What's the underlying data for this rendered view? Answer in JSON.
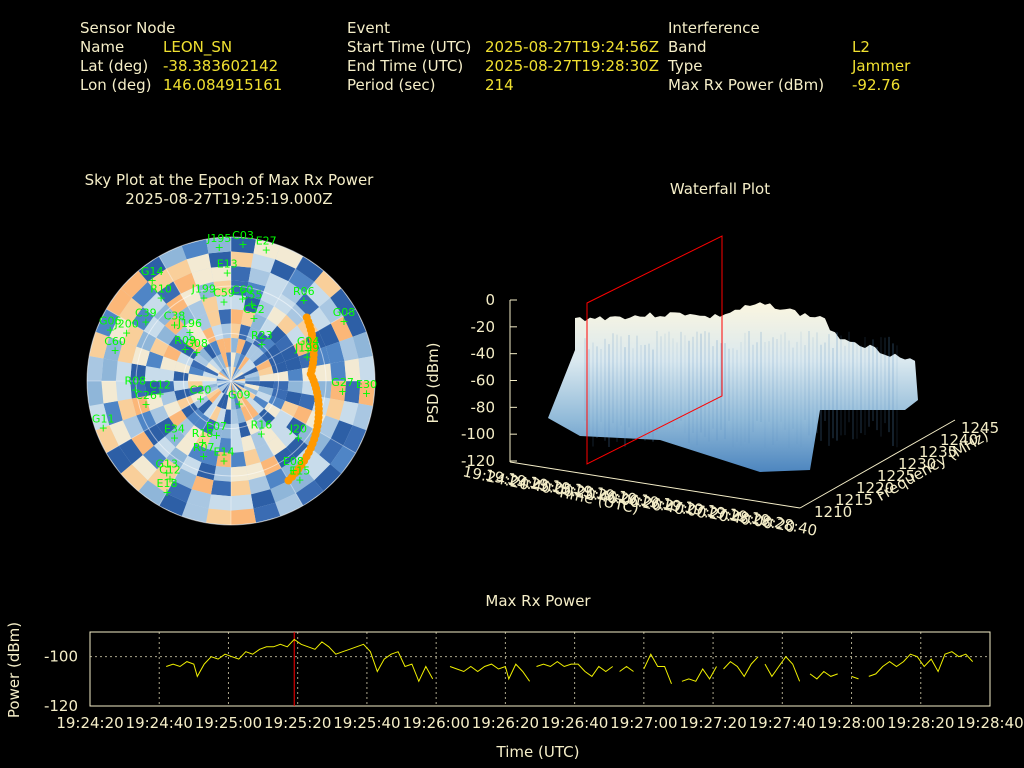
{
  "header": {
    "sensor": {
      "heading": "Sensor Node",
      "rows": [
        {
          "label": "Name",
          "value": "LEON_SN"
        },
        {
          "label": "Lat (deg)",
          "value": "-38.383602142"
        },
        {
          "label": "Lon (deg)",
          "value": "146.084915161"
        }
      ]
    },
    "event": {
      "heading": "Event",
      "rows": [
        {
          "label": "Start Time (UTC)",
          "value": "2025-08-27T19:24:56Z"
        },
        {
          "label": "End Time (UTC)",
          "value": "2025-08-27T19:28:30Z"
        },
        {
          "label": "Period (sec)",
          "value": "214"
        }
      ]
    },
    "interference": {
      "heading": "Interference",
      "rows": [
        {
          "label": "Band",
          "value": "L2"
        },
        {
          "label": "Type",
          "value": "Jammer"
        },
        {
          "label": "Max Rx Power (dBm)",
          "value": "-92.76"
        }
      ]
    }
  },
  "sky_plot": {
    "title_line1": "Sky Plot at the Epoch of Max Rx Power",
    "title_line2": "2025-08-27T19:25:19.000Z",
    "satellites": [
      {
        "prn": "G14",
        "az": -38,
        "el": 10
      },
      {
        "prn": "J195",
        "az": -5,
        "el": 6
      },
      {
        "prn": "C03",
        "az": 5,
        "el": 4
      },
      {
        "prn": "E27",
        "az": 15,
        "el": 5
      },
      {
        "prn": "E13",
        "az": -2,
        "el": 22
      },
      {
        "prn": "R10",
        "az": -40,
        "el": 22
      },
      {
        "prn": "J199",
        "az": -18,
        "el": 35
      },
      {
        "prn": "C59",
        "az": -5,
        "el": 40
      },
      {
        "prn": "C60",
        "az": 8,
        "el": 38
      },
      {
        "prn": "C55",
        "az": 15,
        "el": 40
      },
      {
        "prn": "R06",
        "az": 42,
        "el": 22
      },
      {
        "prn": "G08",
        "az": 62,
        "el": 10
      },
      {
        "prn": "C52",
        "az": 20,
        "el": 48
      },
      {
        "prn": "G06",
        "az": -67,
        "el": 8
      },
      {
        "prn": "J200",
        "az": -65,
        "el": 18
      },
      {
        "prn": "C39",
        "az": -55,
        "el": 25
      },
      {
        "prn": "C38",
        "az": -45,
        "el": 40
      },
      {
        "prn": "R09",
        "az": -55,
        "el": 55
      },
      {
        "prn": "J196",
        "az": -40,
        "el": 50
      },
      {
        "prn": "C60",
        "az": -75,
        "el": 15
      },
      {
        "prn": "G08",
        "az": -50,
        "el": 62
      },
      {
        "prn": "R23",
        "az": 40,
        "el": 60
      },
      {
        "prn": "G04",
        "az": 68,
        "el": 38
      },
      {
        "prn": "J199",
        "az": 72,
        "el": 40
      },
      {
        "prn": "R08",
        "az": -95,
        "el": 30
      },
      {
        "prn": "C26",
        "az": -105,
        "el": 35
      },
      {
        "prn": "C12",
        "az": -100,
        "el": 45
      },
      {
        "prn": "C20",
        "az": -120,
        "el": 68
      },
      {
        "prn": "G09",
        "az": 160,
        "el": 75
      },
      {
        "prn": "G27",
        "az": 95,
        "el": 20
      },
      {
        "prn": "E30",
        "az": 95,
        "el": 5
      },
      {
        "prn": "G11",
        "az": -110,
        "el": 5
      },
      {
        "prn": "E34",
        "az": -135,
        "el": 40
      },
      {
        "prn": "R18",
        "az": -155,
        "el": 48
      },
      {
        "prn": "E07",
        "az": -165,
        "el": 55
      },
      {
        "prn": "R16",
        "az": 150,
        "el": 52
      },
      {
        "prn": "R07",
        "az": -160,
        "el": 40
      },
      {
        "prn": "J20",
        "az": 130,
        "el": 35
      },
      {
        "prn": "E14",
        "az": -175,
        "el": 40
      },
      {
        "prn": "G13",
        "az": -145,
        "el": 20
      },
      {
        "prn": "C12",
        "az": -148,
        "el": 18
      },
      {
        "prn": "E18",
        "az": -150,
        "el": 10
      },
      {
        "prn": "E08",
        "az": 145,
        "el": 22
      },
      {
        "prn": "E15",
        "az": 145,
        "el": 15
      }
    ],
    "jammer_track_color": "#ff9900",
    "label_color": "#00ff00"
  },
  "waterfall": {
    "title": "Waterfall Plot",
    "zlabel": "PSD (dBm)",
    "xlabel": "Time (UTC)",
    "ylabel": "Frequency (MHz)",
    "z_ticks": [
      "0",
      "-20",
      "-40",
      "-60",
      "-80",
      "-100",
      "-120"
    ],
    "freq_ticks": [
      "1210",
      "1215",
      "1220",
      "1225",
      "1230",
      "1235",
      "1240",
      "1245"
    ],
    "time_ticks": [
      "19:24:20",
      "19:24:40",
      "19:25:00",
      "19:25:20",
      "19:25:40",
      "19:26:00",
      "19:26:20",
      "19:26:40",
      "19:27:00",
      "19:27:20",
      "19:27:40",
      "19:28:00",
      "19:28:20",
      "19:28:40"
    ]
  },
  "chart_data": {
    "type": "line",
    "title": "Max Rx Power",
    "xlabel": "Time (UTC)",
    "ylabel": "Power (dBm)",
    "x_ticks": [
      "19:24:20",
      "19:24:40",
      "19:25:00",
      "19:25:20",
      "19:25:40",
      "19:26:00",
      "19:26:20",
      "19:26:40",
      "19:27:00",
      "19:27:20",
      "19:27:40",
      "19:28:00",
      "19:28:20",
      "19:28:40"
    ],
    "y_ticks": [
      "-100",
      "-120"
    ],
    "xlim_sec": [
      0,
      260
    ],
    "ylim": [
      -120,
      -90
    ],
    "marker_sec": 59,
    "marker_color": "#ff0000",
    "line_color": "#f0f000",
    "grid": true,
    "series": [
      {
        "values": [
          [
            22,
            -104
          ],
          [
            24,
            -103
          ],
          [
            26,
            -104
          ],
          [
            28,
            -102
          ],
          [
            30,
            -103
          ],
          [
            31,
            -108
          ],
          [
            33,
            -103
          ],
          [
            35,
            -100
          ],
          [
            37,
            -101
          ],
          [
            39,
            -99
          ],
          [
            41,
            -100
          ],
          [
            43,
            -101
          ],
          [
            45,
            -98
          ],
          [
            47,
            -99
          ],
          [
            49,
            -97
          ],
          [
            51,
            -96
          ],
          [
            53,
            -96
          ],
          [
            55,
            -95
          ],
          [
            57,
            -96
          ],
          [
            59,
            -93
          ],
          [
            61,
            -95
          ],
          [
            63,
            -96
          ],
          [
            65,
            -97
          ],
          [
            67,
            -94
          ],
          [
            69,
            -96
          ],
          [
            71,
            -99
          ],
          [
            73,
            -98
          ],
          [
            75,
            -97
          ],
          [
            77,
            -96
          ],
          [
            79,
            -95
          ],
          [
            81,
            -98
          ],
          [
            83,
            -106
          ],
          [
            85,
            -101
          ],
          [
            87,
            -99
          ],
          [
            89,
            -98
          ],
          [
            91,
            -104
          ],
          [
            93,
            -103
          ],
          [
            95,
            -110
          ],
          [
            97,
            -104
          ],
          [
            99,
            -109
          ],
          null,
          [
            104,
            -104
          ],
          [
            106,
            -105
          ],
          [
            108,
            -106
          ],
          [
            110,
            -104
          ],
          [
            112,
            -106
          ],
          [
            114,
            -104
          ],
          [
            116,
            -103
          ],
          [
            118,
            -105
          ],
          [
            120,
            -104
          ],
          [
            121,
            -109
          ],
          [
            123,
            -103
          ],
          [
            125,
            -106
          ],
          [
            127,
            -110
          ],
          null,
          [
            129,
            -104
          ],
          [
            131,
            -103
          ],
          [
            133,
            -104
          ],
          [
            135,
            -102
          ],
          [
            137,
            -104
          ],
          [
            139,
            -103
          ],
          [
            141,
            -103
          ],
          [
            143,
            -106
          ],
          [
            145,
            -108
          ],
          [
            147,
            -104
          ],
          [
            149,
            -106
          ],
          [
            151,
            -104
          ],
          null,
          [
            153,
            -106
          ],
          [
            155,
            -104
          ],
          [
            157,
            -106
          ],
          null,
          [
            160,
            -105
          ],
          [
            162,
            -99
          ],
          [
            164,
            -104
          ],
          [
            166,
            -104
          ],
          [
            168,
            -111
          ],
          null,
          [
            171,
            -110
          ],
          [
            173,
            -109
          ],
          [
            175,
            -110
          ],
          [
            177,
            -105
          ],
          [
            179,
            -109
          ],
          [
            181,
            -104
          ],
          null,
          [
            183,
            -105
          ],
          [
            185,
            -102
          ],
          [
            187,
            -104
          ],
          [
            189,
            -108
          ],
          [
            191,
            -103
          ],
          [
            193,
            -100
          ],
          null,
          [
            195,
            -103
          ],
          [
            197,
            -108
          ],
          [
            199,
            -104
          ],
          [
            201,
            -100
          ],
          [
            203,
            -103
          ],
          [
            205,
            -110
          ],
          null,
          [
            208,
            -107
          ],
          [
            210,
            -109
          ],
          [
            212,
            -106
          ],
          [
            214,
            -108
          ],
          [
            216,
            -107
          ],
          null,
          [
            220,
            -108
          ],
          [
            222,
            -109
          ],
          null,
          [
            225,
            -108
          ],
          [
            227,
            -107
          ],
          [
            229,
            -104
          ],
          [
            231,
            -102
          ],
          [
            233,
            -104
          ],
          [
            235,
            -102
          ],
          [
            237,
            -99
          ],
          [
            239,
            -100
          ],
          [
            241,
            -104
          ],
          [
            243,
            -101
          ],
          [
            245,
            -106
          ],
          [
            247,
            -99
          ],
          [
            249,
            -98
          ],
          [
            251,
            -100
          ],
          [
            253,
            -99
          ],
          [
            255,
            -102
          ]
        ]
      }
    ]
  }
}
